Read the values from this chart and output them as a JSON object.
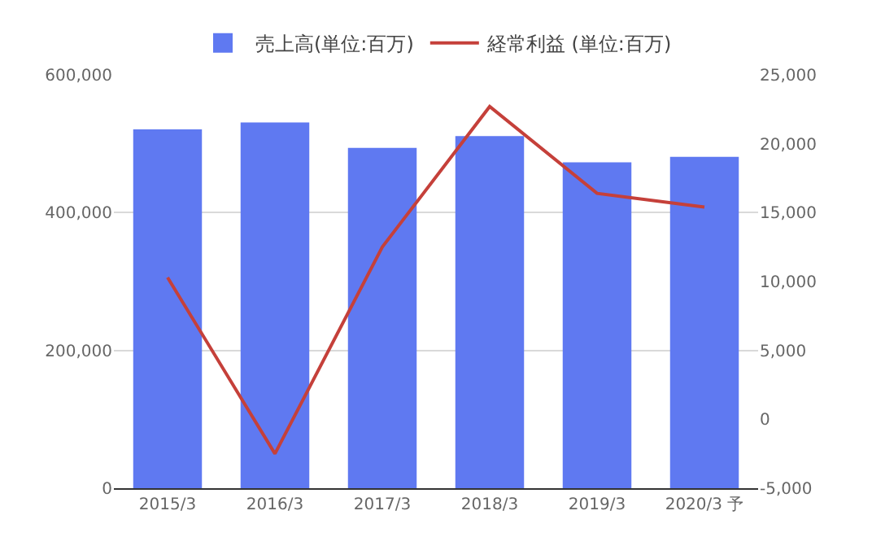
{
  "chart_data": {
    "type": "bar",
    "categories": [
      "2015/3",
      "2016/3",
      "2017/3",
      "2018/3",
      "2019/3",
      "2020/3 予"
    ],
    "series": [
      {
        "name": "売上高(単位:百万)",
        "color": "#5f79f1",
        "values": [
          521000,
          531000,
          494000,
          511000,
          473000,
          481000
        ]
      },
      {
        "name": "経常利益 (単位:百万)",
        "type": "line",
        "axis": "y2",
        "color": "#c5403a",
        "values": [
          10300,
          -2500,
          12500,
          22700,
          16400,
          15400
        ]
      }
    ],
    "ylim": [
      0,
      600000
    ],
    "yticks": [
      {
        "value": 0,
        "label": "0"
      },
      {
        "value": 200000,
        "label": "200,000"
      },
      {
        "value": 400000,
        "label": "400,000"
      },
      {
        "value": 600000,
        "label": "600,000"
      }
    ],
    "y2lim": [
      -5000,
      25000
    ],
    "y2ticks": [
      {
        "value": -5000,
        "label": "-5,000"
      },
      {
        "value": 0,
        "label": "0"
      },
      {
        "value": 5000,
        "label": "5,000"
      },
      {
        "value": 10000,
        "label": "10,000"
      },
      {
        "value": 15000,
        "label": "15,000"
      },
      {
        "value": 20000,
        "label": "20,000"
      },
      {
        "value": 25000,
        "label": "25,000"
      }
    ],
    "grid": "y",
    "legend": "top",
    "marker": "none",
    "line_style": "solid"
  }
}
